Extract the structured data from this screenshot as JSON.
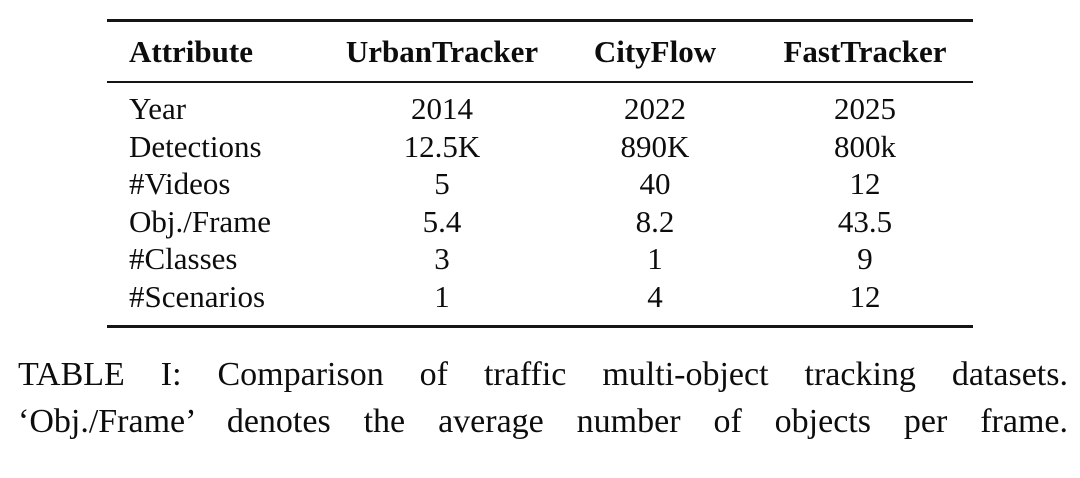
{
  "table": {
    "headers": [
      "Attribute",
      "UrbanTracker",
      "CityFlow",
      "FastTracker"
    ],
    "rows": [
      {
        "attribute": "Year",
        "values": [
          "2014",
          "2022",
          "2025"
        ]
      },
      {
        "attribute": "Detections",
        "values": [
          "12.5K",
          "890K",
          "800k"
        ]
      },
      {
        "attribute": "#Videos",
        "values": [
          "5",
          "40",
          "12"
        ]
      },
      {
        "attribute": "Obj./Frame",
        "values": [
          "5.4",
          "8.2",
          "43.5"
        ]
      },
      {
        "attribute": "#Classes",
        "values": [
          "3",
          "1",
          "9"
        ]
      },
      {
        "attribute": "#Scenarios",
        "values": [
          "1",
          "4",
          "12"
        ]
      }
    ]
  },
  "caption": {
    "line1": "TABLE I: Comparison of traffic multi-object tracking datasets.",
    "line2": "‘Obj./Frame’ denotes the average number of objects per frame."
  },
  "colors": {
    "background": "#ffffff",
    "text": "#0d0d0d",
    "rule": "#151515"
  }
}
